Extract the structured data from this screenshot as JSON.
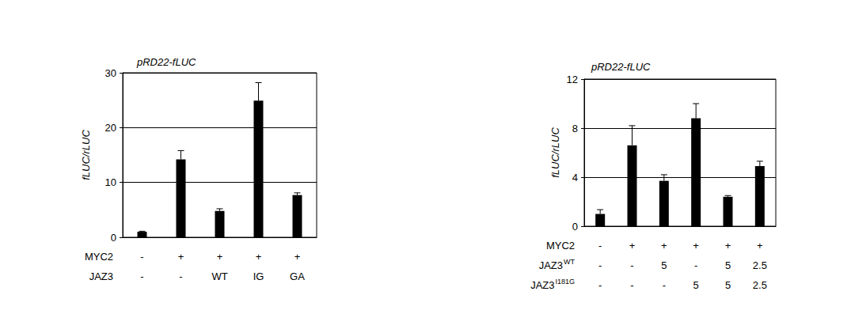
{
  "chart_data": [
    {
      "type": "bar",
      "title": "pRD22-fLUC",
      "y_label": "fLUC/rLUC",
      "categories": [
        null,
        null,
        null,
        null,
        null
      ],
      "values": [
        1.0,
        14.2,
        4.8,
        24.9,
        7.7
      ],
      "errors": [
        0.1,
        1.6,
        0.4,
        3.3,
        0.4
      ],
      "color": "#000000",
      "ylim": [
        0,
        30
      ],
      "yticks": [
        0,
        10,
        20,
        30
      ],
      "grid": true,
      "rows": [
        {
          "label": "MYC2",
          "values": [
            "-",
            "+",
            "+",
            "+",
            "+"
          ]
        },
        {
          "label": "JAZ3",
          "values": [
            "-",
            "-",
            "WT",
            "IG",
            "GA"
          ]
        }
      ]
    },
    {
      "type": "bar",
      "title": "pRD22-fLUC",
      "y_label": "fLUC/rLUC",
      "categories": [
        null,
        null,
        null,
        null,
        null,
        null
      ],
      "values": [
        1.0,
        6.6,
        3.7,
        8.8,
        2.4,
        4.9
      ],
      "errors": [
        0.35,
        1.6,
        0.5,
        1.2,
        0.1,
        0.4
      ],
      "color": "#000000",
      "ylim": [
        0,
        12
      ],
      "yticks": [
        0,
        4,
        8,
        12
      ],
      "grid": true,
      "rows": [
        {
          "label": "MYC2",
          "values": [
            "-",
            "+",
            "+",
            "+",
            "+",
            "+"
          ]
        },
        {
          "label": "JAZ3",
          "sup": "WT",
          "values": [
            "-",
            "-",
            "5",
            "-",
            "5",
            "2.5"
          ]
        },
        {
          "label": "JAZ3",
          "sup": "I181G",
          "values": [
            "-",
            "-",
            "-",
            "5",
            "5",
            "2.5"
          ]
        }
      ]
    }
  ]
}
